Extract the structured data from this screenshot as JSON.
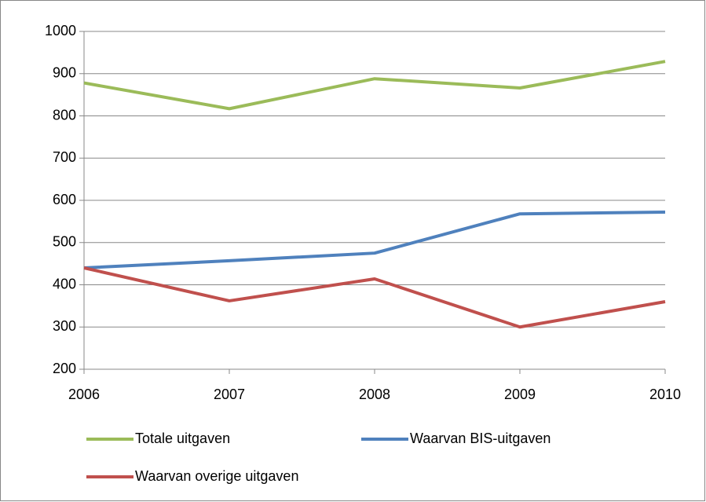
{
  "chart_data": {
    "type": "line",
    "categories": [
      "2006",
      "2007",
      "2008",
      "2009",
      "2010"
    ],
    "series": [
      {
        "name": "Totale uitgaven",
        "color": "#9bbb59",
        "values": [
          878,
          817,
          888,
          866,
          929
        ]
      },
      {
        "name": "Waarvan BIS-uitgaven",
        "color": "#4f81bd",
        "values": [
          440,
          457,
          475,
          568,
          572
        ]
      },
      {
        "name": "Waarvan overige uitgaven",
        "color": "#c0504d",
        "values": [
          440,
          362,
          414,
          300,
          360
        ]
      }
    ],
    "ylim": [
      200,
      1000
    ],
    "yticks": [
      200,
      300,
      400,
      500,
      600,
      700,
      800,
      900,
      1000
    ],
    "grid": true,
    "legend": "bottom"
  }
}
